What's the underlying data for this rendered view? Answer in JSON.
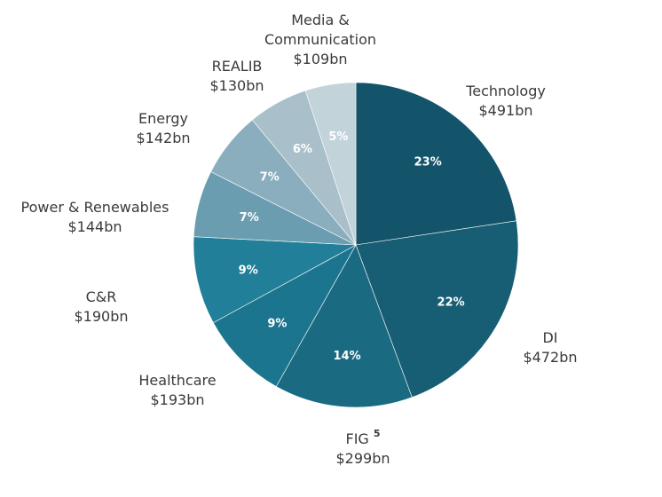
{
  "chart_data": {
    "type": "pie",
    "start": "top",
    "direction": "clockwise",
    "slices": [
      {
        "name": "Technology",
        "value_label": "$491bn",
        "value": 491,
        "percent_label": "23%",
        "color": "#13546a"
      },
      {
        "name": "DI",
        "value_label": "$472bn",
        "value": 472,
        "percent_label": "22%",
        "color": "#175e74"
      },
      {
        "name": "FIG",
        "superscript": "5",
        "value_label": "$299bn",
        "value": 299,
        "percent_label": "14%",
        "color": "#1a6a82"
      },
      {
        "name": "Healthcare",
        "value_label": "$193bn",
        "value": 193,
        "percent_label": "9%",
        "color": "#1c758e"
      },
      {
        "name": "C&R",
        "value_label": "$190bn",
        "value": 190,
        "percent_label": "9%",
        "color": "#217f99"
      },
      {
        "name": "Power & Renewables",
        "value_label": "$144bn",
        "value": 144,
        "percent_label": "7%",
        "color": "#6a9db0"
      },
      {
        "name": "Energy",
        "value_label": "$142bn",
        "value": 142,
        "percent_label": "7%",
        "color": "#8aaebd"
      },
      {
        "name": "REALIB",
        "value_label": "$130bn",
        "value": 130,
        "percent_label": "6%",
        "color": "#a9c0cb"
      },
      {
        "name": "Media &\nCommunication",
        "value_label": "$109bn",
        "value": 109,
        "percent_label": "5%",
        "color": "#c3d3da"
      }
    ]
  }
}
